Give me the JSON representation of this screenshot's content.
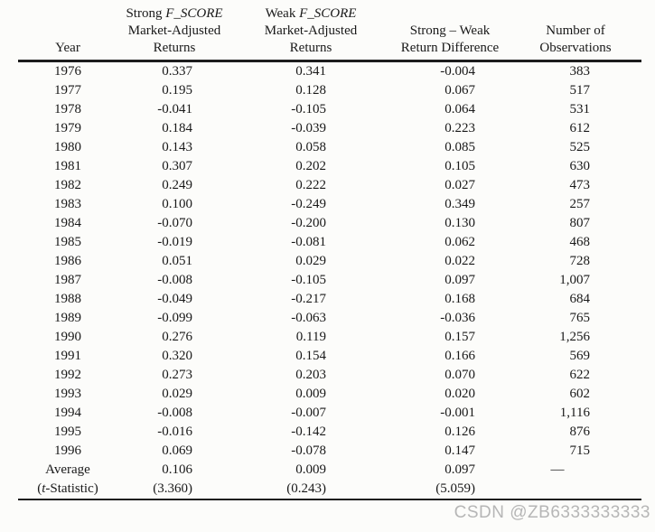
{
  "watermark": "CSDN @ZB6333333333",
  "table": {
    "headers": {
      "year": "Year",
      "strong": {
        "line1_prefix": "Strong ",
        "line1_italic": "F_SCORE",
        "line2": "Market-Adjusted",
        "line3": "Returns"
      },
      "weak": {
        "line1_prefix": "Weak ",
        "line1_italic": "F_SCORE",
        "line2": "Market-Adjusted",
        "line3": "Returns"
      },
      "diff": {
        "line1": "Strong – Weak",
        "line2": "Return Difference"
      },
      "obs": {
        "line1": "Number of",
        "line2": "Observations"
      }
    },
    "rows": [
      {
        "year": "1976",
        "strong": "0.337",
        "weak": "0.341",
        "diff": "-0.004",
        "obs": "383"
      },
      {
        "year": "1977",
        "strong": "0.195",
        "weak": "0.128",
        "diff": "0.067",
        "obs": "517"
      },
      {
        "year": "1978",
        "strong": "-0.041",
        "weak": "-0.105",
        "diff": "0.064",
        "obs": "531"
      },
      {
        "year": "1979",
        "strong": "0.184",
        "weak": "-0.039",
        "diff": "0.223",
        "obs": "612"
      },
      {
        "year": "1980",
        "strong": "0.143",
        "weak": "0.058",
        "diff": "0.085",
        "obs": "525"
      },
      {
        "year": "1981",
        "strong": "0.307",
        "weak": "0.202",
        "diff": "0.105",
        "obs": "630"
      },
      {
        "year": "1982",
        "strong": "0.249",
        "weak": "0.222",
        "diff": "0.027",
        "obs": "473"
      },
      {
        "year": "1983",
        "strong": "0.100",
        "weak": "-0.249",
        "diff": "0.349",
        "obs": "257"
      },
      {
        "year": "1984",
        "strong": "-0.070",
        "weak": "-0.200",
        "diff": "0.130",
        "obs": "807"
      },
      {
        "year": "1985",
        "strong": "-0.019",
        "weak": "-0.081",
        "diff": "0.062",
        "obs": "468"
      },
      {
        "year": "1986",
        "strong": "0.051",
        "weak": "0.029",
        "diff": "0.022",
        "obs": "728"
      },
      {
        "year": "1987",
        "strong": "-0.008",
        "weak": "-0.105",
        "diff": "0.097",
        "obs": "1,007"
      },
      {
        "year": "1988",
        "strong": "-0.049",
        "weak": "-0.217",
        "diff": "0.168",
        "obs": "684"
      },
      {
        "year": "1989",
        "strong": "-0.099",
        "weak": "-0.063",
        "diff": "-0.036",
        "obs": "765"
      },
      {
        "year": "1990",
        "strong": "0.276",
        "weak": "0.119",
        "diff": "0.157",
        "obs": "1,256"
      },
      {
        "year": "1991",
        "strong": "0.320",
        "weak": "0.154",
        "diff": "0.166",
        "obs": "569"
      },
      {
        "year": "1992",
        "strong": "0.273",
        "weak": "0.203",
        "diff": "0.070",
        "obs": "622"
      },
      {
        "year": "1993",
        "strong": "0.029",
        "weak": "0.009",
        "diff": "0.020",
        "obs": "602"
      },
      {
        "year": "1994",
        "strong": "-0.008",
        "weak": "-0.007",
        "diff": "-0.001",
        "obs": "1,116"
      },
      {
        "year": "1995",
        "strong": "-0.016",
        "weak": "-0.142",
        "diff": "0.126",
        "obs": "876"
      },
      {
        "year": "1996",
        "strong": "0.069",
        "weak": "-0.078",
        "diff": "0.147",
        "obs": "715"
      }
    ],
    "average_row": {
      "label": "Average",
      "strong": "0.106",
      "weak": "0.009",
      "diff": "0.097",
      "obs": "—"
    },
    "tstat_row": {
      "label_prefix": "(",
      "label_italic": "t",
      "label_suffix": "-Statistic)",
      "strong": "(3.360)",
      "weak": "(0.243)",
      "diff": "(5.059)",
      "obs": ""
    }
  }
}
